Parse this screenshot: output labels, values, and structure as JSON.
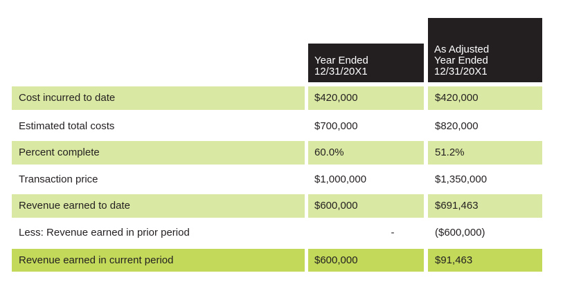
{
  "header": {
    "col1_lines": [
      "Year Ended",
      "12/31/20X1"
    ],
    "col2_lines": [
      "As Adjusted",
      "Year Ended",
      "12/31/20X1"
    ]
  },
  "rows": [
    {
      "label": "Cost incurred to date",
      "col1": "$420,000",
      "col2": "$420,000"
    },
    {
      "label": "Estimated total costs",
      "col1": "$700,000",
      "col2": "$820,000"
    },
    {
      "label": "Percent complete",
      "col1": "60.0%",
      "col2": "51.2%"
    },
    {
      "label": "Transaction price",
      "col1": "$1,000,000",
      "col2": "$1,350,000"
    },
    {
      "label": "Revenue earned to date",
      "col1": "$600,000",
      "col2": "$691,463"
    },
    {
      "label": "Less: Revenue earned in prior period",
      "col1": "-",
      "col2": "($600,000)"
    },
    {
      "label": "Revenue earned in current period",
      "col1": "$600,000",
      "col2": "$91,463"
    }
  ],
  "colors": {
    "header_bg": "#231f20",
    "row_shade": "#d9e8a2",
    "total_shade": "#c2d95a"
  }
}
